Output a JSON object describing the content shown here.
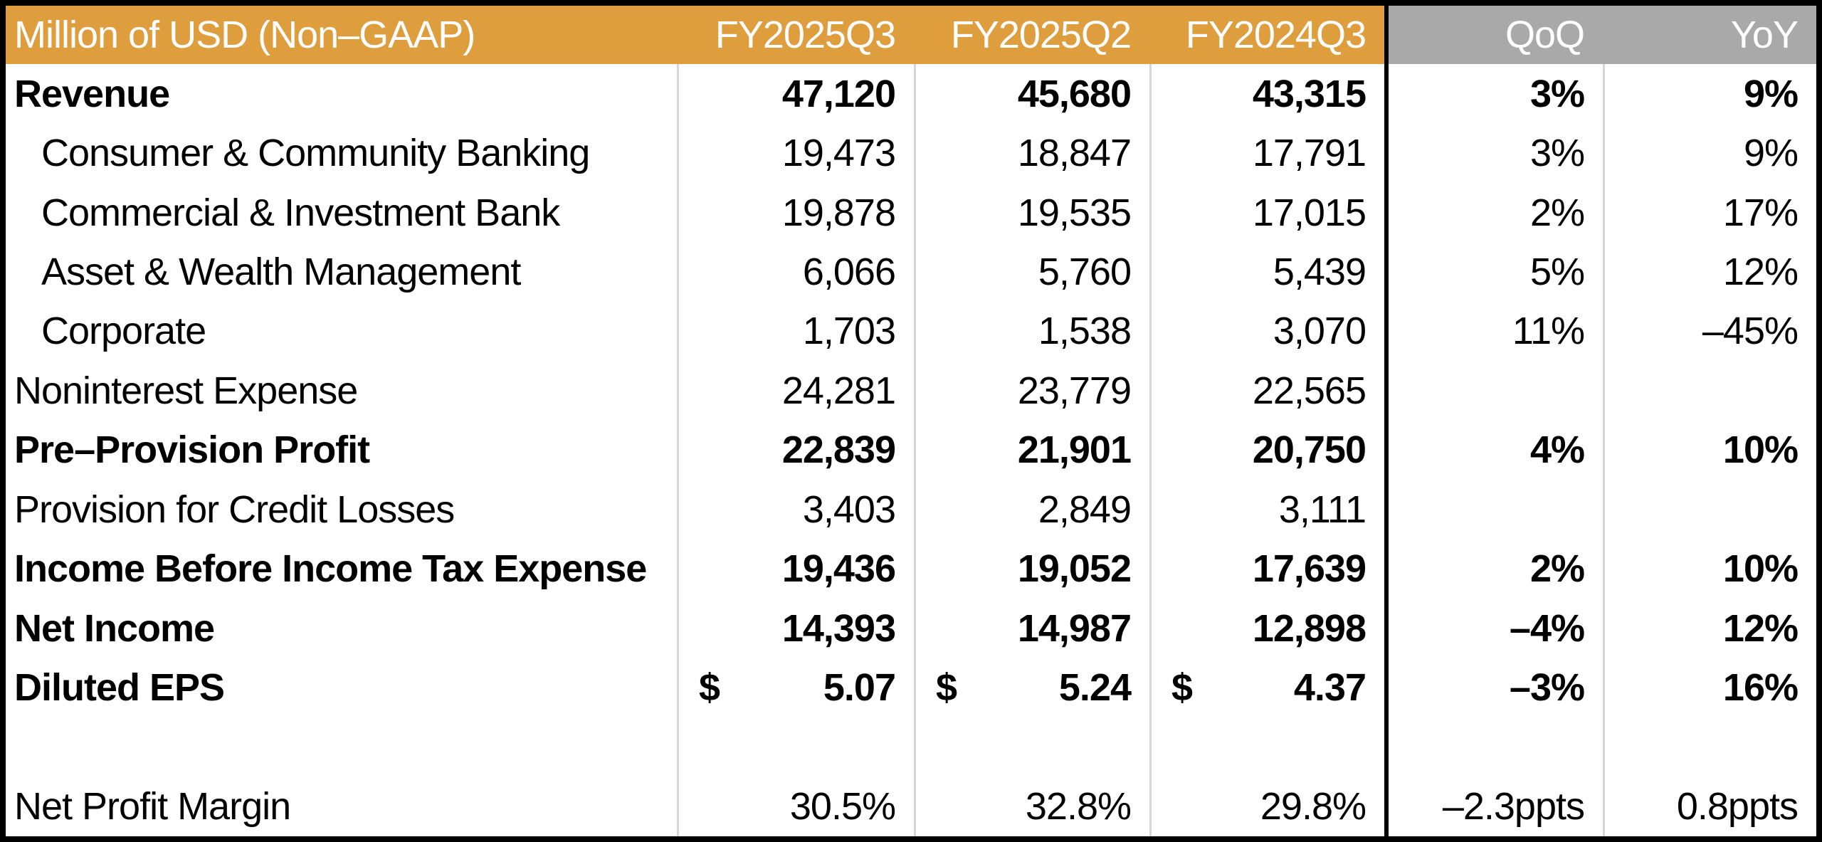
{
  "colors": {
    "header_orange": "#DF9E3E",
    "header_gray": "#A9A9A9",
    "header_text": "#FFFFFF",
    "body_text": "#000000",
    "separator": "#D6D6D6",
    "border_black": "#000000",
    "background": "#FFFFFF"
  },
  "chart_data": {
    "type": "table",
    "title": "Million of USD (Non–GAAP)",
    "currency_symbol": "$",
    "columns": [
      "Million of USD (Non–GAAP)",
      "FY2025Q3",
      "FY2025Q2",
      "FY2024Q3",
      "QoQ",
      "YoY"
    ],
    "rows": [
      {
        "label": "Revenue",
        "bold": true,
        "indent": false,
        "dollar": false,
        "values": [
          "47,120",
          "45,680",
          "43,315",
          "3%",
          "9%"
        ]
      },
      {
        "label": "Consumer & Community Banking",
        "bold": false,
        "indent": true,
        "dollar": false,
        "values": [
          "19,473",
          "18,847",
          "17,791",
          "3%",
          "9%"
        ]
      },
      {
        "label": "Commercial & Investment Bank",
        "bold": false,
        "indent": true,
        "dollar": false,
        "values": [
          "19,878",
          "19,535",
          "17,015",
          "2%",
          "17%"
        ]
      },
      {
        "label": "Asset & Wealth Management",
        "bold": false,
        "indent": true,
        "dollar": false,
        "values": [
          "6,066",
          "5,760",
          "5,439",
          "5%",
          "12%"
        ]
      },
      {
        "label": "Corporate",
        "bold": false,
        "indent": true,
        "dollar": false,
        "values": [
          "1,703",
          "1,538",
          "3,070",
          "11%",
          "–45%"
        ]
      },
      {
        "label": "Noninterest Expense",
        "bold": false,
        "indent": false,
        "dollar": false,
        "values": [
          "24,281",
          "23,779",
          "22,565",
          "",
          ""
        ]
      },
      {
        "label": "Pre–Provision Profit",
        "bold": true,
        "indent": false,
        "dollar": false,
        "values": [
          "22,839",
          "21,901",
          "20,750",
          "4%",
          "10%"
        ]
      },
      {
        "label": "Provision for Credit Losses",
        "bold": false,
        "indent": false,
        "dollar": false,
        "values": [
          "3,403",
          "2,849",
          "3,111",
          "",
          ""
        ]
      },
      {
        "label": "Income Before Income Tax Expense",
        "bold": true,
        "indent": false,
        "dollar": false,
        "values": [
          "19,436",
          "19,052",
          "17,639",
          "2%",
          "10%"
        ]
      },
      {
        "label": "Net Income",
        "bold": true,
        "indent": false,
        "dollar": false,
        "values": [
          "14,393",
          "14,987",
          "12,898",
          "–4%",
          "12%"
        ]
      },
      {
        "label": "Diluted EPS",
        "bold": true,
        "indent": false,
        "dollar": true,
        "values": [
          "5.07",
          "5.24",
          "4.37",
          "–3%",
          "16%"
        ]
      },
      {
        "label": "",
        "bold": false,
        "indent": false,
        "dollar": false,
        "values": [
          "",
          "",
          "",
          "",
          ""
        ]
      },
      {
        "label": "Net Profit Margin",
        "bold": false,
        "indent": false,
        "dollar": false,
        "values": [
          "30.5%",
          "32.8%",
          "29.8%",
          "–2.3ppts",
          "0.8ppts"
        ]
      }
    ]
  }
}
